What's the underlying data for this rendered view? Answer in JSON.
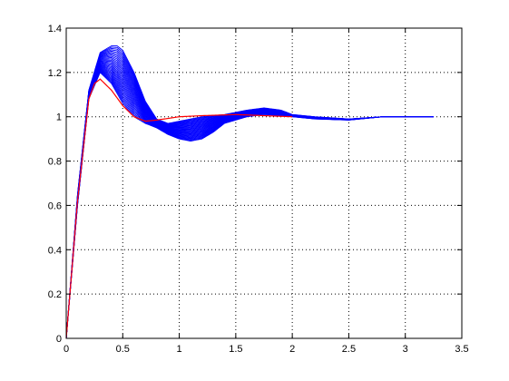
{
  "chart_data": {
    "type": "line",
    "title": "",
    "xlabel": "",
    "ylabel": "",
    "xlim": [
      0,
      3.5
    ],
    "ylim": [
      0,
      1.4
    ],
    "x_ticks": [
      "0",
      "0.5",
      "1",
      "1.5",
      "2",
      "2.5",
      "3",
      "3.5"
    ],
    "y_ticks": [
      "0",
      "0.2",
      "0.4",
      "0.6",
      "0.8",
      "1",
      "1.2",
      "1.4"
    ],
    "grid": true,
    "grid_style": "dotted",
    "legend": "none",
    "series_color": "#0000ff",
    "reference_color": "#ff0000",
    "series_family": {
      "description_of_envelope": "family of step responses",
      "count": 30,
      "x_end": 3.25,
      "upper_envelope": {
        "x": [
          0,
          0.1,
          0.2,
          0.3,
          0.4,
          0.45,
          0.5,
          0.6,
          0.7,
          0.8,
          0.9,
          1.0,
          1.2,
          1.4,
          1.6,
          1.75,
          1.9,
          2.0,
          2.2,
          2.5,
          2.8,
          3.0,
          3.25
        ],
        "y": [
          0,
          0.65,
          1.12,
          1.29,
          1.32,
          1.32,
          1.3,
          1.2,
          1.07,
          0.99,
          0.97,
          0.98,
          1.0,
          1.01,
          1.03,
          1.04,
          1.03,
          1.01,
          1.0,
          0.99,
          1.0,
          1.0,
          1.0
        ]
      },
      "lower_envelope": {
        "x": [
          0,
          0.1,
          0.2,
          0.3,
          0.4,
          0.5,
          0.6,
          0.7,
          0.8,
          0.9,
          1.0,
          1.1,
          1.2,
          1.3,
          1.4,
          1.6,
          1.75,
          1.9,
          2.0,
          2.2,
          2.5,
          2.8,
          3.0,
          3.25
        ],
        "y": [
          0,
          0.6,
          1.08,
          1.2,
          1.15,
          1.06,
          1.0,
          0.97,
          0.95,
          0.92,
          0.9,
          0.89,
          0.9,
          0.93,
          0.97,
          1.0,
          1.01,
          1.005,
          1.0,
          0.99,
          0.985,
          1.0,
          1.0,
          1.0
        ]
      }
    },
    "reference_series": {
      "x": [
        0,
        0.1,
        0.2,
        0.25,
        0.3,
        0.4,
        0.5,
        0.6,
        0.7,
        0.8,
        1.0,
        1.2,
        1.5,
        2.0
      ],
      "y": [
        0,
        0.62,
        1.08,
        1.15,
        1.17,
        1.12,
        1.05,
        1.0,
        0.98,
        0.985,
        1.0,
        1.005,
        1.01,
        1.0
      ]
    }
  }
}
